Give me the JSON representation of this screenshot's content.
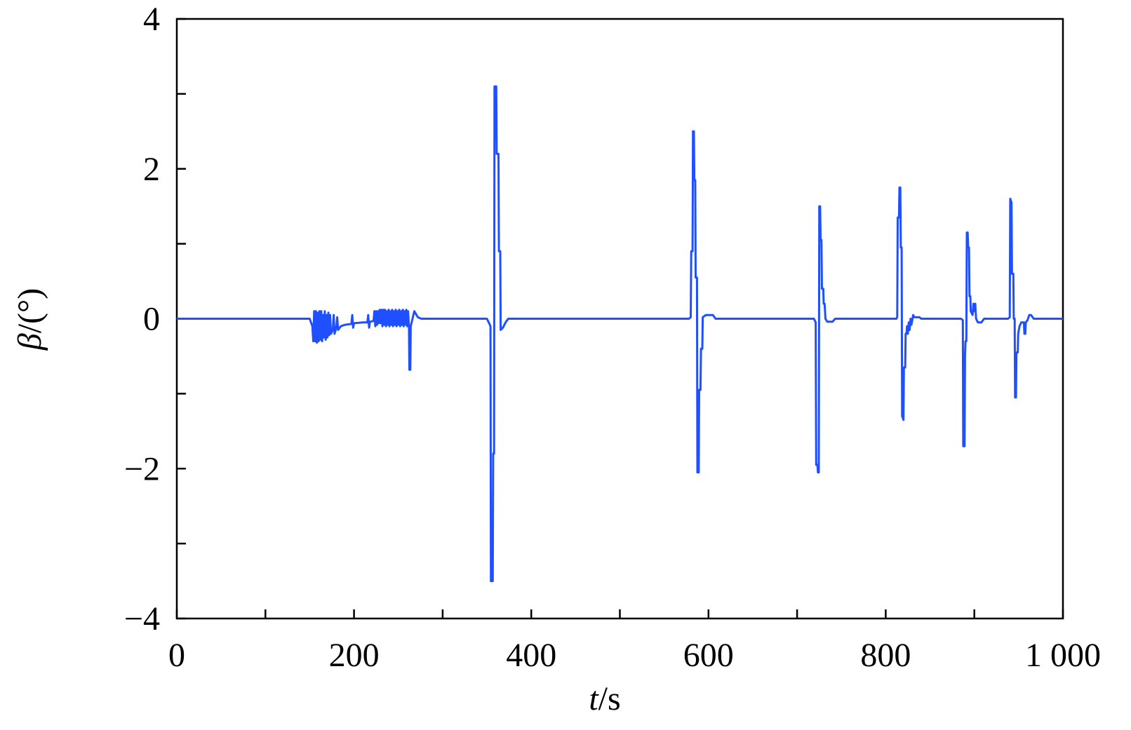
{
  "chart_data": {
    "type": "line",
    "title": "",
    "xlabel": {
      "italic": "t",
      "rest": "/s"
    },
    "ylabel": {
      "italic": "β",
      "rest": "/(°)"
    },
    "xlim": [
      0,
      1000
    ],
    "ylim": [
      -4,
      4
    ],
    "x_ticks": [
      0,
      200,
      400,
      600,
      800,
      1000
    ],
    "x_tick_labels": [
      "0",
      "200",
      "400",
      "600",
      "800",
      "1 000"
    ],
    "x_minor_ticks": [
      100,
      300,
      500,
      700,
      900
    ],
    "y_ticks": [
      4,
      2,
      0,
      -2,
      -4
    ],
    "y_tick_labels": [
      "4",
      "2",
      "0",
      "−2",
      "−4"
    ],
    "y_minor_ticks": [
      3,
      1,
      -1,
      -3
    ],
    "grid": false,
    "line_color": "#1f4fff",
    "series": [
      {
        "points": [
          [
            0,
            0
          ],
          [
            150,
            0
          ],
          [
            153,
            -0.1
          ],
          [
            154,
            -0.3
          ],
          [
            155,
            0.1
          ],
          [
            156,
            -0.3
          ],
          [
            157,
            0.1
          ],
          [
            158,
            -0.32
          ],
          [
            159,
            0.08
          ],
          [
            160,
            -0.3
          ],
          [
            161,
            0.1
          ],
          [
            162,
            -0.28
          ],
          [
            163,
            0.1
          ],
          [
            164,
            -0.3
          ],
          [
            165,
            0.05
          ],
          [
            166,
            -0.25
          ],
          [
            167,
            0.1
          ],
          [
            168,
            -0.28
          ],
          [
            169,
            0.05
          ],
          [
            170,
            -0.25
          ],
          [
            171,
            0.08
          ],
          [
            172,
            -0.22
          ],
          [
            173,
            0.05
          ],
          [
            174,
            -0.2
          ],
          [
            176,
            -0.15
          ],
          [
            177,
            0.05
          ],
          [
            178,
            -0.2
          ],
          [
            180,
            -0.12
          ],
          [
            181,
            0.02
          ],
          [
            182,
            -0.15
          ],
          [
            185,
            -0.1
          ],
          [
            190,
            -0.08
          ],
          [
            197,
            -0.07
          ],
          [
            198,
            0.05
          ],
          [
            199,
            -0.12
          ],
          [
            200,
            -0.06
          ],
          [
            210,
            -0.05
          ],
          [
            215,
            -0.05
          ],
          [
            216,
            0.05
          ],
          [
            217,
            -0.12
          ],
          [
            218,
            -0.04
          ],
          [
            222,
            -0.03
          ],
          [
            223,
            0.1
          ],
          [
            224,
            -0.1
          ],
          [
            225,
            0.1
          ],
          [
            226,
            -0.08
          ],
          [
            227,
            0.1
          ],
          [
            228,
            -0.06
          ],
          [
            229,
            0.12
          ],
          [
            230,
            -0.06
          ],
          [
            231,
            0.12
          ],
          [
            232,
            -0.1
          ],
          [
            233,
            0.12
          ],
          [
            234,
            -0.08
          ],
          [
            235,
            0.12
          ],
          [
            236,
            -0.1
          ],
          [
            237,
            0.1
          ],
          [
            238,
            -0.08
          ],
          [
            239,
            0.12
          ],
          [
            240,
            -0.1
          ],
          [
            241,
            0.1
          ],
          [
            242,
            -0.08
          ],
          [
            243,
            0.12
          ],
          [
            244,
            -0.1
          ],
          [
            245,
            0.1
          ],
          [
            246,
            -0.08
          ],
          [
            247,
            0.12
          ],
          [
            248,
            -0.1
          ],
          [
            249,
            0.1
          ],
          [
            250,
            -0.08
          ],
          [
            251,
            0.12
          ],
          [
            252,
            -0.1
          ],
          [
            253,
            0.1
          ],
          [
            254,
            -0.08
          ],
          [
            255,
            0.12
          ],
          [
            256,
            -0.1
          ],
          [
            257,
            0.1
          ],
          [
            258,
            -0.08
          ],
          [
            259,
            0.12
          ],
          [
            260,
            -0.1
          ],
          [
            261,
            0.1
          ],
          [
            262,
            -0.1
          ],
          [
            262.5,
            -0.68
          ],
          [
            263.5,
            -0.68
          ],
          [
            264,
            -0.1
          ],
          [
            265,
            -0.05
          ],
          [
            268,
            0.1
          ],
          [
            272,
            0.02
          ],
          [
            276,
            0
          ],
          [
            350,
            0
          ],
          [
            352,
            -0.05
          ],
          [
            354,
            -0.1
          ],
          [
            354.5,
            -3.5
          ],
          [
            356.5,
            -3.5
          ],
          [
            357,
            -1.8
          ],
          [
            358,
            -1.8
          ],
          [
            358.5,
            3.1
          ],
          [
            360.5,
            3.1
          ],
          [
            361,
            2.2
          ],
          [
            363,
            2.2
          ],
          [
            363.5,
            0.9
          ],
          [
            365,
            0.9
          ],
          [
            365.5,
            -0.15
          ],
          [
            368,
            -0.12
          ],
          [
            371,
            -0.05
          ],
          [
            374,
            0
          ],
          [
            578,
            0
          ],
          [
            580,
            0.02
          ],
          [
            580.5,
            0.9
          ],
          [
            582,
            0.9
          ],
          [
            582.5,
            2.5
          ],
          [
            583.5,
            2.5
          ],
          [
            584,
            1.85
          ],
          [
            585,
            1.85
          ],
          [
            585.5,
            0.55
          ],
          [
            587,
            0.55
          ],
          [
            587.5,
            -2.05
          ],
          [
            589,
            -2.05
          ],
          [
            589.5,
            -0.95
          ],
          [
            591,
            -0.95
          ],
          [
            591.5,
            -0.4
          ],
          [
            593,
            -0.4
          ],
          [
            593.5,
            0.02
          ],
          [
            597,
            0.05
          ],
          [
            605,
            0.05
          ],
          [
            608,
            0
          ],
          [
            719,
            0
          ],
          [
            721,
            -0.05
          ],
          [
            721.5,
            -1.95
          ],
          [
            723,
            -1.95
          ],
          [
            723.5,
            -2.05
          ],
          [
            724.5,
            -2.05
          ],
          [
            725,
            1.5
          ],
          [
            726,
            1.5
          ],
          [
            726.5,
            1.05
          ],
          [
            727.5,
            1.05
          ],
          [
            728,
            0.4
          ],
          [
            729.5,
            0.4
          ],
          [
            730,
            0.2
          ],
          [
            731,
            0.2
          ],
          [
            732,
            0.0
          ],
          [
            734,
            -0.04
          ],
          [
            740,
            -0.04
          ],
          [
            743,
            0
          ],
          [
            812,
            0
          ],
          [
            813,
            0.02
          ],
          [
            813.5,
            1.35
          ],
          [
            815,
            1.35
          ],
          [
            815.5,
            1.75
          ],
          [
            816.5,
            1.75
          ],
          [
            817,
            0.95
          ],
          [
            818,
            0.95
          ],
          [
            818.5,
            -1.3
          ],
          [
            820,
            -1.35
          ],
          [
            820.5,
            -0.65
          ],
          [
            822,
            -0.65
          ],
          [
            822.5,
            -0.2
          ],
          [
            823.5,
            -0.2
          ],
          [
            824,
            -0.1
          ],
          [
            825,
            -0.2
          ],
          [
            826,
            -0.05
          ],
          [
            827,
            -0.15
          ],
          [
            828,
            0.0
          ],
          [
            829,
            -0.08
          ],
          [
            831,
            0.05
          ],
          [
            832,
            0.02
          ],
          [
            838,
            0.02
          ],
          [
            840,
            0
          ],
          [
            885,
            0
          ],
          [
            887,
            -0.02
          ],
          [
            887.5,
            -1.7
          ],
          [
            889,
            -1.7
          ],
          [
            889.5,
            -0.5
          ],
          [
            890,
            -0.3
          ],
          [
            891,
            -0.3
          ],
          [
            891.5,
            1.15
          ],
          [
            892.5,
            1.15
          ],
          [
            893,
            0.95
          ],
          [
            894,
            0.95
          ],
          [
            894.5,
            0.3
          ],
          [
            895.5,
            0.3
          ],
          [
            896,
            0.1
          ],
          [
            898,
            0.05
          ],
          [
            899,
            0.2
          ],
          [
            900,
            0.1
          ],
          [
            901,
            0.2
          ],
          [
            902,
            0
          ],
          [
            904,
            -0.05
          ],
          [
            908,
            -0.05
          ],
          [
            911,
            0
          ],
          [
            938,
            0
          ],
          [
            940,
            0.02
          ],
          [
            940.5,
            1.6
          ],
          [
            942,
            1.55
          ],
          [
            942.5,
            0.6
          ],
          [
            944,
            0.6
          ],
          [
            944.5,
            0
          ],
          [
            945.5,
            0
          ],
          [
            946,
            -1.05
          ],
          [
            947,
            -1.05
          ],
          [
            947.5,
            -0.45
          ],
          [
            949,
            -0.45
          ],
          [
            949.5,
            -0.2
          ],
          [
            951,
            -0.1
          ],
          [
            953,
            -0.05
          ],
          [
            956,
            -0.05
          ],
          [
            956.5,
            -0.2
          ],
          [
            957.5,
            -0.2
          ],
          [
            958,
            -0.05
          ],
          [
            960,
            -0.02
          ],
          [
            962,
            0.05
          ],
          [
            964,
            0.05
          ],
          [
            967,
            0
          ],
          [
            1000,
            0
          ]
        ]
      }
    ]
  }
}
